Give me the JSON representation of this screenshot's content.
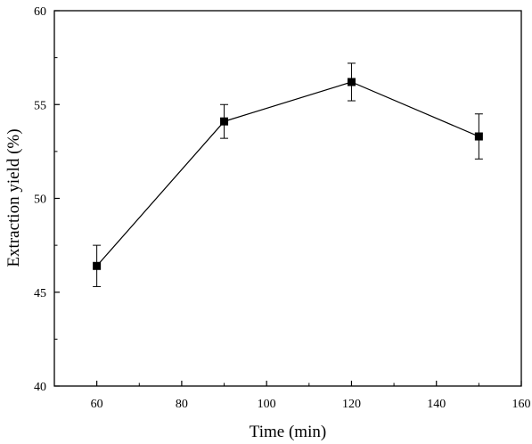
{
  "chart_data": {
    "type": "line",
    "xlabel": "Time (min)",
    "ylabel": "Extraction yield (%)",
    "xlim": [
      50,
      160
    ],
    "ylim": [
      40,
      60
    ],
    "xticks": [
      60,
      80,
      100,
      120,
      140,
      160
    ],
    "yticks": [
      40,
      45,
      50,
      55,
      60
    ],
    "grid": false,
    "legend": "none",
    "marker": "square",
    "series": [
      {
        "x": [
          60,
          90,
          120,
          150
        ],
        "y": [
          46.4,
          54.1,
          56.2,
          53.3
        ],
        "error": [
          1.1,
          0.9,
          1.0,
          1.2
        ],
        "color": "#000000"
      }
    ]
  }
}
